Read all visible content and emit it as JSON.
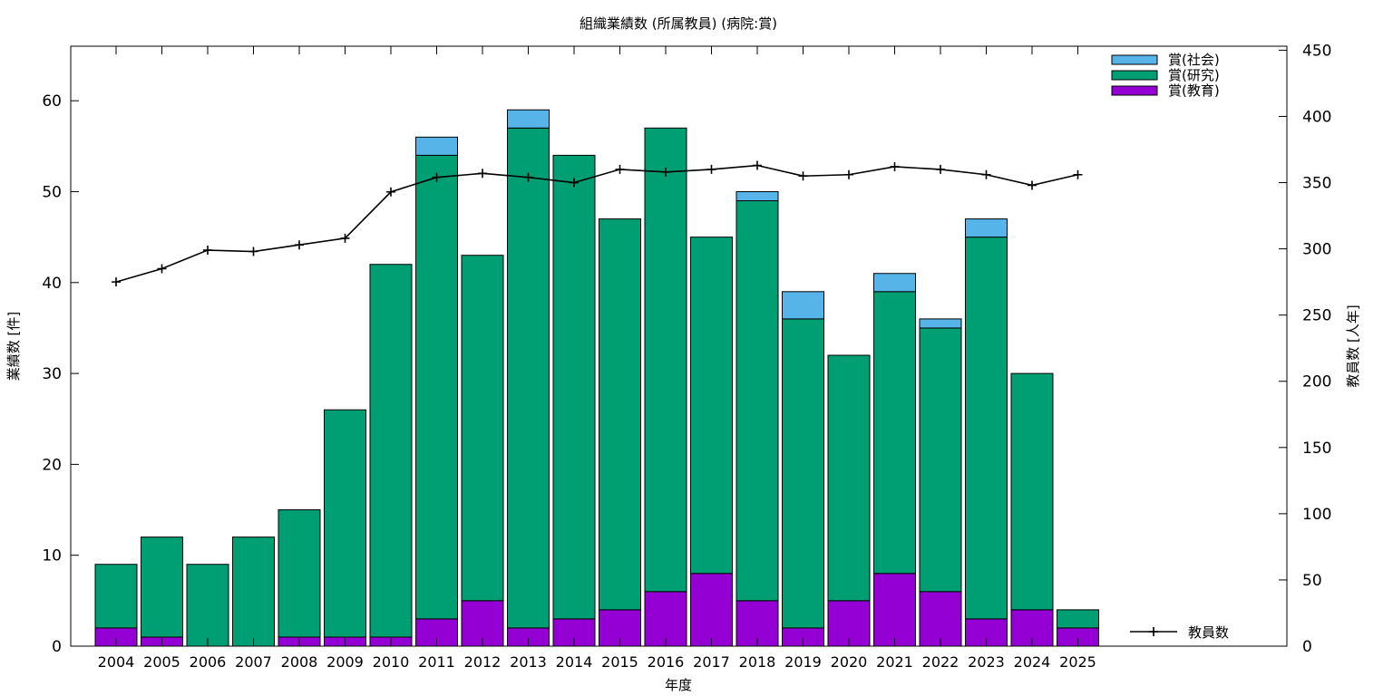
{
  "chart_data": {
    "type": "bar",
    "title": "組織業績数 (所属教員) (病院:賞)",
    "xlabel": "年度",
    "ylabel": "業績数 [件]",
    "y2label": "教員数 [人年]",
    "categories": [
      "2004",
      "2005",
      "2006",
      "2007",
      "2008",
      "2009",
      "2010",
      "2011",
      "2012",
      "2013",
      "2014",
      "2015",
      "2016",
      "2017",
      "2018",
      "2019",
      "2020",
      "2021",
      "2022",
      "2023",
      "2024",
      "2025"
    ],
    "ylim": [
      0,
      66
    ],
    "yticks": [
      0,
      10,
      20,
      30,
      40,
      50,
      60
    ],
    "y2lim": [
      0,
      453
    ],
    "y2ticks": [
      0,
      50,
      100,
      150,
      200,
      250,
      300,
      350,
      400,
      450
    ],
    "stacked": true,
    "grid": false,
    "legend_position": "top-right",
    "series": [
      {
        "name": "賞(教育)",
        "color": "#9400d3",
        "values": [
          2,
          1,
          0,
          0,
          1,
          1,
          1,
          3,
          5,
          2,
          3,
          4,
          6,
          8,
          5,
          2,
          5,
          8,
          6,
          3,
          4,
          2
        ]
      },
      {
        "name": "賞(研究)",
        "color": "#009e73",
        "values": [
          7,
          11,
          9,
          12,
          14,
          25,
          41,
          51,
          38,
          55,
          51,
          43,
          51,
          37,
          44,
          34,
          27,
          31,
          29,
          42,
          26,
          2
        ]
      },
      {
        "name": "賞(社会)",
        "color": "#56b4e9",
        "values": [
          0,
          0,
          0,
          0,
          0,
          0,
          0,
          2,
          0,
          2,
          0,
          0,
          0,
          0,
          1,
          3,
          0,
          2,
          1,
          2,
          0,
          0
        ]
      }
    ],
    "line_series": {
      "name": "教員数",
      "color": "#000000",
      "axis": "y2",
      "values": [
        275,
        285,
        299,
        298,
        303,
        308,
        343,
        354,
        357,
        354,
        350,
        360,
        358,
        360,
        363,
        355,
        356,
        362,
        360,
        356,
        348,
        356
      ]
    }
  }
}
